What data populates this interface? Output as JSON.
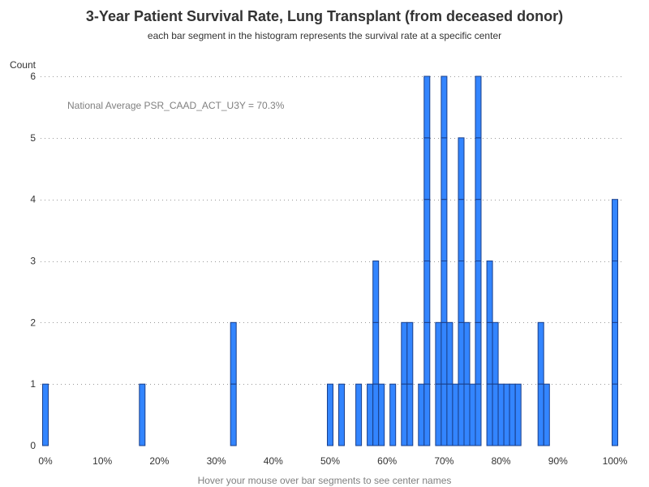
{
  "chart_data": {
    "type": "bar",
    "title": "3-Year Patient Survival Rate, Lung Transplant (from deceased donor)",
    "subtitle": "each bar segment in the histogram represents the survival rate at a specific center",
    "ylabel": "Count",
    "footnote": "Hover your mouse over bar segments to see center names",
    "annotation": "National Average PSR_CAAD_ACT_U3Y = 70.3%",
    "xlim": [
      0,
      100
    ],
    "ylim": [
      0,
      6
    ],
    "x_ticks": [
      0,
      10,
      20,
      30,
      40,
      50,
      60,
      70,
      80,
      90,
      100
    ],
    "x_tick_labels": [
      "0%",
      "10%",
      "20%",
      "30%",
      "40%",
      "50%",
      "60%",
      "70%",
      "80%",
      "90%",
      "100%"
    ],
    "y_ticks": [
      0,
      1,
      2,
      3,
      4,
      5,
      6
    ],
    "y_tick_labels": [
      "0",
      "1",
      "2",
      "3",
      "4",
      "5",
      "6"
    ],
    "grid": true,
    "bar_color": "#3385ff",
    "bar_outline": "#1a3f8a",
    "x": [
      0,
      17,
      33,
      50,
      52,
      55,
      57,
      58,
      59,
      61,
      63,
      64,
      66,
      67,
      69,
      70,
      71,
      72,
      73,
      74,
      75,
      76,
      78,
      79,
      80,
      81,
      82,
      83,
      87,
      88,
      100
    ],
    "values": [
      1,
      1,
      2,
      1,
      1,
      1,
      1,
      3,
      1,
      1,
      2,
      2,
      1,
      6,
      2,
      6,
      2,
      1,
      5,
      2,
      1,
      6,
      3,
      2,
      1,
      1,
      1,
      1,
      2,
      1,
      4
    ]
  }
}
